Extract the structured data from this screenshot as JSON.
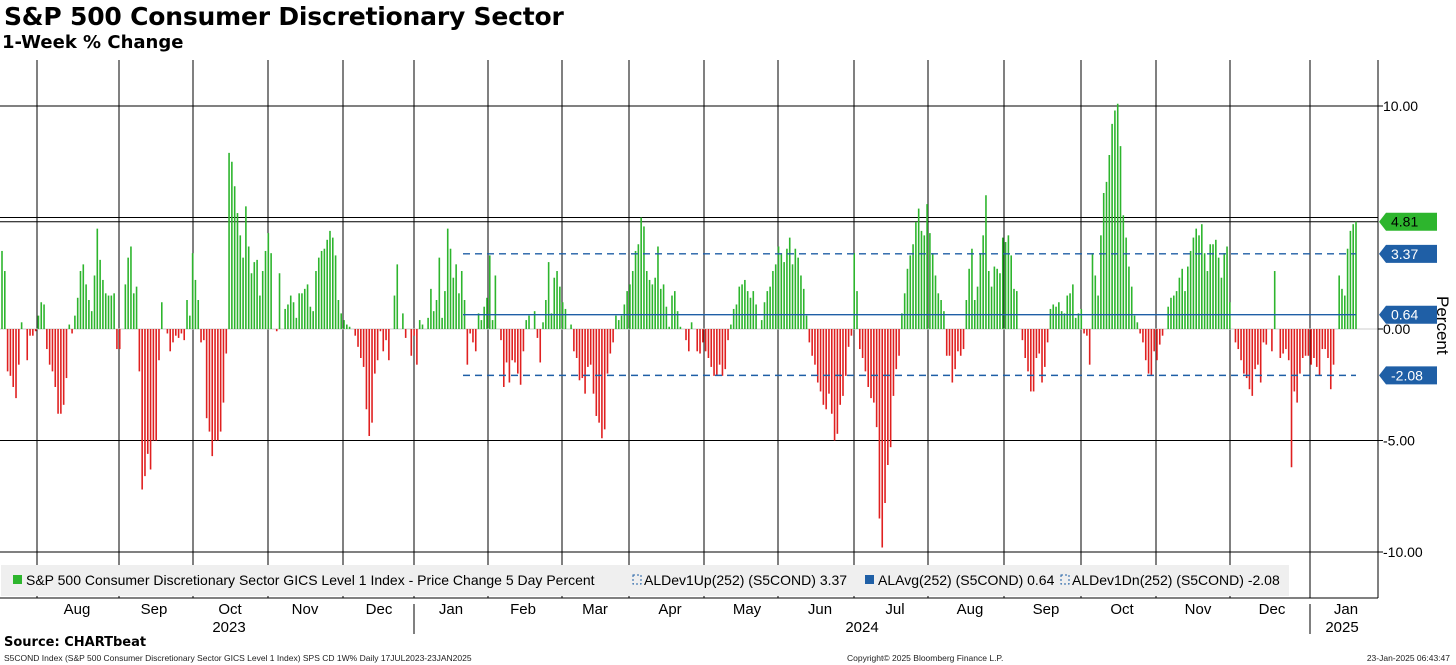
{
  "header": {
    "title": "S&P 500 Consumer Discretionary Sector",
    "subtitle": "1-Week % Change"
  },
  "footer": {
    "source": "Source: CHARTbeat",
    "left_note": "S5COND Index (S&P 500 Consumer Discretionary Sector GICS Level 1 Index) SPS CD 1W%  Daily 17JUL2023-23JAN2025",
    "center_note": "Copyright© 2025 Bloomberg Finance L.P.",
    "right_note": "23-Jan-2025 06:43:47"
  },
  "colors": {
    "positive": "#2db52d",
    "negative": "#e02020",
    "average": "#1f5fa6",
    "grid": "#000000"
  },
  "chart_data": {
    "type": "bar",
    "title": "S&P 500 Consumer Discretionary Sector",
    "subtitle": "1-Week % Change",
    "ylabel": "Percent",
    "xlabel": "",
    "ylim": [
      -11.0,
      12.0
    ],
    "y_ticks": [
      "10.00",
      "0.00",
      "-5.00",
      "-10.00"
    ],
    "y_tick_values": [
      10,
      0,
      -5,
      -10
    ],
    "x_month_labels": [
      "Aug",
      "Sep",
      "Oct",
      "Nov",
      "Dec",
      "Jan",
      "Feb",
      "Mar",
      "Apr",
      "May",
      "Jun",
      "Jul",
      "Aug",
      "Sep",
      "Oct",
      "Nov",
      "Dec",
      "Jan"
    ],
    "x_year_labels": [
      "2023",
      "2024",
      "2025"
    ],
    "reference_lines": [
      {
        "name": "ALDev1Up(252)",
        "value": 3.37,
        "label": "3.37",
        "style": "dashed"
      },
      {
        "name": "ALAvg(252)",
        "value": 0.64,
        "label": "0.64",
        "style": "solid"
      },
      {
        "name": "ALDev1Dn(252)",
        "value": -2.08,
        "label": "-2.08",
        "style": "dashed"
      }
    ],
    "last_value": {
      "value": 4.81,
      "label": "4.81"
    },
    "legend": [
      {
        "label": "S&P 500 Consumer Discretionary Sector GICS Level 1 Index - Price Change 5 Day Percent"
      },
      {
        "label": "ALDev1Up(252)  (S5COND) 3.37"
      },
      {
        "label": "ALAvg(252)  (S5COND) 0.64"
      },
      {
        "label": "ALDev1Dn(252)  (S5COND) -2.08"
      }
    ],
    "series": [
      {
        "name": "S&P 500 Consumer Discretionary Sector GICS Level 1 Index - Price Change 5 Day Percent",
        "start_date": "2023-07-17",
        "end_date": "2025-01-23",
        "values": [
          3.5,
          2.6,
          -1.9,
          -2.1,
          -2.6,
          -3.1,
          -1.6,
          0.3,
          0.0,
          -1.4,
          -0.3,
          -0.3,
          -0.1,
          0.6,
          1.2,
          1.1,
          -0.9,
          -1.6,
          -1.9,
          -2.6,
          -3.8,
          -3.8,
          -3.4,
          -2.2,
          0.2,
          -0.2,
          0.6,
          1.4,
          2.6,
          2.9,
          2.0,
          1.3,
          0.8,
          2.4,
          4.5,
          3.1,
          2.2,
          1.6,
          1.5,
          1.5,
          1.6,
          -0.9,
          -0.9,
          0.0,
          2.0,
          3.2,
          3.7,
          1.6,
          1.9,
          -1.9,
          -7.2,
          -6.6,
          -5.6,
          -6.3,
          -5.0,
          -5.0,
          -1.4,
          1.2,
          0.0,
          -0.2,
          -1.0,
          -0.6,
          -0.3,
          -0.4,
          -0.2,
          -0.5,
          1.3,
          0.6,
          3.4,
          2.2,
          1.3,
          -0.6,
          -0.5,
          -4.0,
          -4.6,
          -5.7,
          -5.0,
          -5.0,
          -4.6,
          -3.3,
          -1.1,
          7.9,
          7.5,
          6.4,
          5.2,
          4.2,
          3.2,
          5.5,
          3.7,
          2.5,
          3.0,
          3.1,
          1.5,
          2.6,
          3.5,
          4.3,
          3.4,
          0.0,
          -0.1,
          2.5,
          0.0,
          0.9,
          1.1,
          1.5,
          1.2,
          0.5,
          1.6,
          1.6,
          1.8,
          2.0,
          1.0,
          0.8,
          2.6,
          3.2,
          3.5,
          3.6,
          4.0,
          4.4,
          4.1,
          3.3,
          1.3,
          0.7,
          0.4,
          0.2,
          0.1,
          0.0,
          -0.3,
          -0.8,
          -1.3,
          -1.7,
          -3.6,
          -4.8,
          -4.2,
          -2.0,
          -1.4,
          -0.1,
          -1.0,
          -0.5,
          -1.4,
          0.0,
          1.5,
          2.9,
          0.0,
          0.7,
          -0.4,
          0.0,
          -1.2,
          -0.3,
          -1.6,
          0.4,
          0.2,
          0.0,
          0.5,
          1.8,
          0.8,
          1.3,
          3.2,
          0.5,
          1.7,
          4.5,
          3.6,
          2.3,
          2.9,
          1.6,
          2.6,
          1.3,
          -1.6,
          -0.2,
          -0.6,
          -1.0,
          0.7,
          0.4,
          1.0,
          1.4,
          3.3,
          0.4,
          2.4,
          0.0,
          -0.5,
          -2.6,
          -1.5,
          -2.4,
          -1.4,
          -1.5,
          -2.0,
          -2.5,
          -1.0,
          0.4,
          0.6,
          0.0,
          0.8,
          -0.4,
          -1.5,
          0.3,
          1.3,
          3.0,
          0.7,
          2.3,
          2.6,
          1.9,
          1.2,
          0.9,
          0.0,
          0.2,
          -1.0,
          -1.3,
          -2.3,
          -2.2,
          -2.9,
          -1.7,
          -1.6,
          -2.9,
          -3.9,
          -4.2,
          -4.9,
          -4.5,
          -2.0,
          -1.1,
          -0.6,
          0.6,
          0.4,
          0.6,
          1.1,
          1.7,
          2.0,
          2.6,
          3.5,
          3.8,
          5.0,
          4.6,
          2.6,
          2.2,
          2.0,
          2.3,
          3.7,
          1.8,
          2.0,
          1.0,
          0.1,
          1.5,
          1.7,
          0.8,
          0.1,
          0.0,
          -0.5,
          -1.0,
          0.3,
          0.0,
          -1.0,
          -1.1,
          -0.6,
          -1.0,
          -1.3,
          -1.7,
          -2.1,
          -2.1,
          -1.6,
          -2.1,
          -1.8,
          -0.5,
          0.2,
          0.9,
          1.1,
          1.9,
          2.0,
          2.2,
          1.7,
          1.4,
          1.7,
          1.1,
          0.0,
          0.4,
          1.2,
          1.7,
          1.9,
          2.6,
          2.9,
          3.7,
          3.4,
          3.0,
          3.6,
          4.1,
          2.9,
          3.6,
          3.2,
          2.4,
          1.8,
          0.6,
          -0.6,
          -1.2,
          -1.6,
          -2.4,
          -2.8,
          -3.4,
          -3.6,
          -2.9,
          -3.8,
          -5.0,
          -4.7,
          -3.4,
          -3.0,
          -2.1,
          -0.8,
          -0.3,
          3.4,
          1.7,
          -0.9,
          -1.3,
          -1.9,
          -2.6,
          -3.1,
          -3.3,
          -4.4,
          -8.5,
          -9.8,
          -7.8,
          -6.1,
          -5.3,
          -3.0,
          -1.8,
          -1.2,
          0.7,
          1.6,
          2.7,
          3.3,
          3.8,
          4.8,
          5.4,
          4.4,
          4.2,
          5.6,
          4.3,
          3.4,
          2.4,
          1.6,
          1.3,
          0.8,
          -1.2,
          -1.2,
          -2.4,
          -1.8,
          -1.0,
          -1.2,
          -0.9,
          1.3,
          2.7,
          3.6,
          1.3,
          1.9,
          3.4,
          4.2,
          6.0,
          2.6,
          1.9,
          2.8,
          2.7,
          2.5,
          4.1,
          3.9,
          4.2,
          3.3,
          1.8,
          1.7,
          0.0,
          -0.5,
          -1.3,
          -1.9,
          -2.8,
          -2.8,
          -1.3,
          -1.1,
          -2.4,
          -1.7,
          -0.6,
          0.9,
          1.1,
          1.0,
          1.2,
          0.8,
          0.7,
          1.5,
          1.6,
          2.0,
          0.5,
          0.7,
          0.9,
          -0.2,
          -0.3,
          -1.6,
          3.4,
          2.4,
          1.5,
          4.2,
          6.1,
          6.6,
          7.8,
          9.2,
          9.8,
          10.1,
          8.2,
          5.1,
          4.1,
          2.8,
          1.9,
          0.6,
          0.3,
          -0.2,
          -0.6,
          -1.4,
          -2.0,
          -2.1,
          -1.0,
          -1.4,
          -0.7,
          -0.3,
          0.0,
          1.0,
          1.4,
          1.5,
          1.7,
          2.3,
          2.7,
          1.7,
          2.8,
          3.5,
          4.1,
          4.5,
          4.2,
          4.7,
          3.4,
          2.6,
          3.8,
          3.8,
          4.0,
          3.2,
          2.3,
          3.4,
          3.7,
          1.2,
          0.0,
          -0.6,
          -0.9,
          -1.4,
          -2.0,
          -2.2,
          -2.7,
          -3.0,
          -1.8,
          -1.6,
          -2.4,
          -0.6,
          -0.7,
          0.0,
          -1.0,
          2.6,
          0.0,
          -1.3,
          -1.1,
          -0.9,
          -1.4,
          -6.2,
          -2.8,
          -3.3,
          -2.0,
          -1.3,
          -1.2,
          -1.2,
          -1.6,
          -1.3,
          -1.7,
          -2.1,
          -0.9,
          -0.9,
          -1.3,
          -2.7,
          -1.6,
          0.0,
          2.4,
          1.8,
          1.5,
          3.6,
          4.4,
          4.7,
          4.81
        ]
      }
    ]
  }
}
